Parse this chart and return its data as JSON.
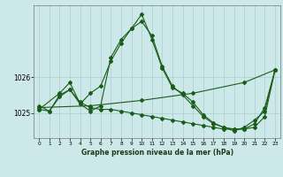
{
  "title": "Graphe pression niveau de la mer (hPa)",
  "background_color": "#cce8e8",
  "plot_bg_color": "#cce8e8",
  "grid_color": "#aacece",
  "line_color": "#1a5c1a",
  "marker_color": "#1a5c1a",
  "xlim": [
    -0.5,
    23.5
  ],
  "ylim": [
    1024.3,
    1028.0
  ],
  "yticks": [
    1025,
    1026
  ],
  "xticks": [
    0,
    1,
    2,
    3,
    4,
    5,
    6,
    7,
    8,
    9,
    10,
    11,
    12,
    13,
    14,
    15,
    16,
    17,
    18,
    19,
    20,
    21,
    22,
    23
  ],
  "series1_x": [
    0,
    1,
    2,
    3,
    4,
    5,
    6,
    7,
    8,
    9,
    10,
    11,
    12,
    13,
    14,
    15,
    16,
    17,
    18,
    19,
    20,
    21,
    22,
    23
  ],
  "series1_y": [
    1025.1,
    1025.05,
    1025.45,
    1025.65,
    1025.25,
    1025.55,
    1025.75,
    1026.45,
    1026.95,
    1027.35,
    1027.55,
    1027.15,
    1026.3,
    1025.75,
    1025.5,
    1025.2,
    1024.9,
    1024.7,
    1024.6,
    1024.5,
    1024.6,
    1024.8,
    1025.05,
    1026.2
  ],
  "series2_x": [
    0,
    1,
    2,
    3,
    4,
    5,
    6,
    7,
    8,
    9,
    10,
    11,
    12,
    13,
    14,
    15,
    16,
    17,
    18,
    19,
    20,
    21,
    22,
    23
  ],
  "series2_y": [
    1025.2,
    1025.05,
    1025.5,
    1025.65,
    1025.3,
    1025.15,
    1025.1,
    1025.1,
    1025.05,
    1025.0,
    1024.95,
    1024.9,
    1024.85,
    1024.8,
    1024.75,
    1024.7,
    1024.65,
    1024.6,
    1024.55,
    1024.55,
    1024.55,
    1024.6,
    1024.9,
    1026.2
  ],
  "series3_x": [
    0,
    2,
    3,
    4,
    5,
    6,
    7,
    8,
    9,
    10,
    11,
    12,
    13,
    14,
    15,
    16,
    17,
    18,
    19,
    20,
    21,
    22,
    23
  ],
  "series3_y": [
    1025.1,
    1025.55,
    1025.85,
    1025.25,
    1025.05,
    1025.2,
    1026.55,
    1027.05,
    1027.35,
    1027.75,
    1027.05,
    1026.25,
    1025.7,
    1025.55,
    1025.3,
    1024.95,
    1024.72,
    1024.6,
    1024.55,
    1024.55,
    1024.7,
    1025.15,
    1026.2
  ],
  "series4_x": [
    0,
    5,
    10,
    15,
    20,
    23
  ],
  "series4_y": [
    1025.15,
    1025.2,
    1025.35,
    1025.55,
    1025.85,
    1026.2
  ]
}
